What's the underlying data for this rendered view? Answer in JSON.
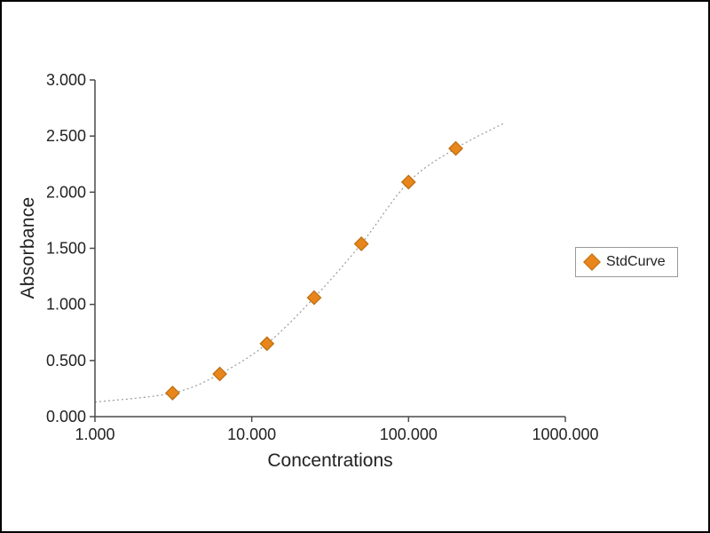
{
  "chart_data": {
    "type": "scatter",
    "title": "",
    "xlabel": "Concentrations",
    "ylabel": "Absorbance",
    "x_scale": "log",
    "xlim": [
      1,
      1000
    ],
    "ylim": [
      0,
      3
    ],
    "x_ticks": [
      1,
      10,
      100,
      1000
    ],
    "x_tick_labels": [
      "1.000",
      "10.000",
      "100.000",
      "1000.000"
    ],
    "y_ticks": [
      0,
      0.5,
      1,
      1.5,
      2,
      2.5,
      3
    ],
    "y_tick_labels": [
      "0.000",
      "0.500",
      "1.000",
      "1.500",
      "2.000",
      "2.500",
      "3.000"
    ],
    "grid": false,
    "series": [
      {
        "name": "StdCurve",
        "marker": "diamond",
        "color": "#E8861C",
        "x": [
          3.125,
          6.25,
          12.5,
          25,
          50,
          100,
          200
        ],
        "y": [
          0.21,
          0.38,
          0.65,
          1.06,
          1.54,
          2.09,
          2.39
        ]
      }
    ],
    "fit_curve": {
      "style": "dotted",
      "color": "#9a9a9a",
      "x_start": 1,
      "y_start": 0.13,
      "x_end": 400,
      "y_end": 2.61
    },
    "legend": {
      "position": "right",
      "entries": [
        "StdCurve"
      ]
    }
  },
  "colors": {
    "marker": "#E8861C",
    "marker_border": "#c06f12",
    "curve": "#9a9a9a",
    "axis": "#4a4a4a",
    "tick_text": "#222222"
  }
}
